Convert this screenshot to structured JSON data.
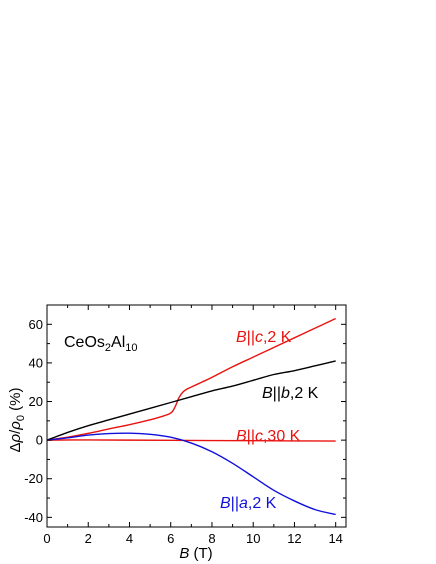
{
  "chart_data": {
    "type": "line",
    "title": "",
    "annotation_compound": {
      "base": "CeOs",
      "sub1": "2",
      "mid": "Al",
      "sub2": "10"
    },
    "xlabel": {
      "italic": "B",
      "rest": " (T)"
    },
    "ylabel": {
      "delta": "Δ",
      "rho": "ρ",
      "slash": "/",
      "rho0": "ρ",
      "sub0": "0",
      "rest": " (%)"
    },
    "xlim": [
      0,
      14.5
    ],
    "ylim": [
      -45,
      70
    ],
    "xticks": [
      0,
      2,
      4,
      6,
      8,
      10,
      12,
      14
    ],
    "yticks": [
      -40,
      -20,
      0,
      20,
      40,
      60
    ],
    "xtick_labels": [
      "0",
      "2",
      "4",
      "6",
      "8",
      "10",
      "12",
      "14"
    ],
    "ytick_labels": [
      "-40",
      "-20",
      "0",
      "20",
      "40",
      "60"
    ],
    "series": [
      {
        "label_italic": "B",
        "label_parallel": "||",
        "label_axis": "c",
        "label_rest": ",2 K",
        "color": "#e8130f",
        "x": [
          0,
          1,
          2,
          3,
          4,
          5,
          5.5,
          6,
          6.2,
          6.4,
          6.6,
          6.8,
          7,
          7.5,
          8,
          9,
          10,
          11,
          12,
          13,
          14
        ],
        "y": [
          0,
          1.5,
          3.5,
          5.8,
          8,
          10.5,
          12,
          14,
          17,
          22,
          25,
          26.5,
          27.5,
          30,
          32.5,
          38,
          43,
          48,
          53,
          58,
          63
        ]
      },
      {
        "label_italic": "B",
        "label_parallel": "||",
        "label_axis": "b",
        "label_rest": ",2 K",
        "color": "#000000",
        "x": [
          0,
          1,
          2,
          3,
          4,
          5,
          6,
          7,
          8,
          9,
          10,
          11,
          12,
          13,
          14
        ],
        "y": [
          0,
          4,
          7.5,
          10.5,
          13.5,
          16.5,
          19.5,
          22.5,
          25.5,
          28,
          31,
          34,
          36,
          38.5,
          41
        ]
      },
      {
        "label_italic": "B",
        "label_parallel": "||",
        "label_axis": "c",
        "label_rest": ",30 K",
        "color": "#e8130f",
        "x": [
          0,
          2,
          4,
          6,
          8,
          10,
          12,
          14
        ],
        "y": [
          0,
          0.1,
          0,
          -0.1,
          -0.2,
          -0.3,
          -0.4,
          -0.5
        ]
      },
      {
        "label_italic": "B",
        "label_parallel": "||",
        "label_axis": "a",
        "label_rest": ",2 K",
        "color": "#1010dd",
        "x": [
          0,
          1,
          2,
          3,
          4,
          5,
          6,
          7,
          8,
          9,
          10,
          11,
          12,
          13,
          14
        ],
        "y": [
          0,
          1.2,
          2.6,
          3.4,
          3.6,
          3,
          1.5,
          -1.5,
          -6,
          -12,
          -19,
          -26,
          -31.5,
          -36,
          -38.5
        ]
      }
    ]
  }
}
